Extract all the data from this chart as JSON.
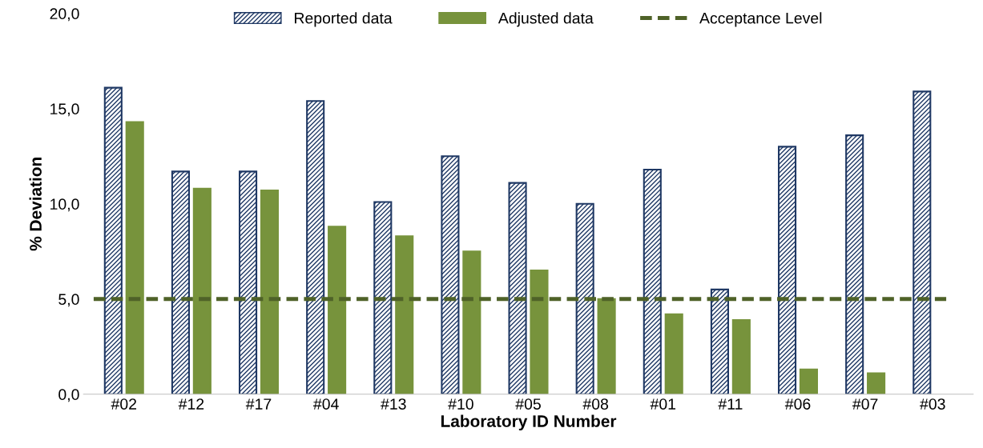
{
  "chart_data": {
    "type": "bar",
    "xlabel": "Laboratory ID Number",
    "ylabel": "% Deviation",
    "categories": [
      "#02",
      "#12",
      "#17",
      "#04",
      "#13",
      "#10",
      "#05",
      "#08",
      "#01",
      "#11",
      "#06",
      "#07",
      "#03"
    ],
    "series": [
      {
        "name": "Reported data",
        "color": "#1f3864",
        "values": [
          16.1,
          11.7,
          11.7,
          15.4,
          10.1,
          12.5,
          11.1,
          10.0,
          11.8,
          5.5,
          13.0,
          13.6,
          15.9
        ]
      },
      {
        "name": "Adjusted data",
        "color": "#77933c",
        "values": [
          14.3,
          10.8,
          10.7,
          8.8,
          8.3,
          7.5,
          6.5,
          5.0,
          4.2,
          3.9,
          1.3,
          1.1,
          null
        ]
      }
    ],
    "ref_lines": [
      {
        "axis": "y",
        "value": 5.0,
        "label": "Acceptance Level",
        "color": "#4f6228",
        "line_style": "dashed"
      }
    ],
    "ylim": [
      0,
      20
    ],
    "yticks": [
      {
        "value": 0,
        "label": "0,0"
      },
      {
        "value": 5,
        "label": "5,0"
      },
      {
        "value": 10,
        "label": "10,0"
      },
      {
        "value": 15,
        "label": "15,0"
      },
      {
        "value": 20,
        "label": "20,0"
      }
    ],
    "legend": "top",
    "grid": false
  }
}
